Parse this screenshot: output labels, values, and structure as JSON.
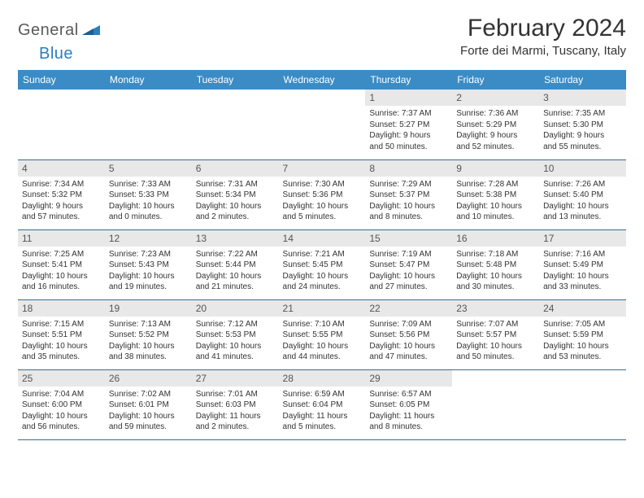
{
  "logo": {
    "text1": "General",
    "text2": "Blue"
  },
  "title": "February 2024",
  "location": "Forte dei Marmi, Tuscany, Italy",
  "colors": {
    "header_bg": "#3b8bc4",
    "header_text": "#ffffff",
    "daynum_bg": "#e8e8e8",
    "row_border": "#3b6b8f",
    "logo_gray": "#5a5a5a",
    "logo_blue": "#2a7fbf"
  },
  "weekdays": [
    "Sunday",
    "Monday",
    "Tuesday",
    "Wednesday",
    "Thursday",
    "Friday",
    "Saturday"
  ],
  "weeks": [
    [
      null,
      null,
      null,
      null,
      {
        "n": "1",
        "sr": "Sunrise: 7:37 AM",
        "ss": "Sunset: 5:27 PM",
        "dl1": "Daylight: 9 hours",
        "dl2": "and 50 minutes."
      },
      {
        "n": "2",
        "sr": "Sunrise: 7:36 AM",
        "ss": "Sunset: 5:29 PM",
        "dl1": "Daylight: 9 hours",
        "dl2": "and 52 minutes."
      },
      {
        "n": "3",
        "sr": "Sunrise: 7:35 AM",
        "ss": "Sunset: 5:30 PM",
        "dl1": "Daylight: 9 hours",
        "dl2": "and 55 minutes."
      }
    ],
    [
      {
        "n": "4",
        "sr": "Sunrise: 7:34 AM",
        "ss": "Sunset: 5:32 PM",
        "dl1": "Daylight: 9 hours",
        "dl2": "and 57 minutes."
      },
      {
        "n": "5",
        "sr": "Sunrise: 7:33 AM",
        "ss": "Sunset: 5:33 PM",
        "dl1": "Daylight: 10 hours",
        "dl2": "and 0 minutes."
      },
      {
        "n": "6",
        "sr": "Sunrise: 7:31 AM",
        "ss": "Sunset: 5:34 PM",
        "dl1": "Daylight: 10 hours",
        "dl2": "and 2 minutes."
      },
      {
        "n": "7",
        "sr": "Sunrise: 7:30 AM",
        "ss": "Sunset: 5:36 PM",
        "dl1": "Daylight: 10 hours",
        "dl2": "and 5 minutes."
      },
      {
        "n": "8",
        "sr": "Sunrise: 7:29 AM",
        "ss": "Sunset: 5:37 PM",
        "dl1": "Daylight: 10 hours",
        "dl2": "and 8 minutes."
      },
      {
        "n": "9",
        "sr": "Sunrise: 7:28 AM",
        "ss": "Sunset: 5:38 PM",
        "dl1": "Daylight: 10 hours",
        "dl2": "and 10 minutes."
      },
      {
        "n": "10",
        "sr": "Sunrise: 7:26 AM",
        "ss": "Sunset: 5:40 PM",
        "dl1": "Daylight: 10 hours",
        "dl2": "and 13 minutes."
      }
    ],
    [
      {
        "n": "11",
        "sr": "Sunrise: 7:25 AM",
        "ss": "Sunset: 5:41 PM",
        "dl1": "Daylight: 10 hours",
        "dl2": "and 16 minutes."
      },
      {
        "n": "12",
        "sr": "Sunrise: 7:23 AM",
        "ss": "Sunset: 5:43 PM",
        "dl1": "Daylight: 10 hours",
        "dl2": "and 19 minutes."
      },
      {
        "n": "13",
        "sr": "Sunrise: 7:22 AM",
        "ss": "Sunset: 5:44 PM",
        "dl1": "Daylight: 10 hours",
        "dl2": "and 21 minutes."
      },
      {
        "n": "14",
        "sr": "Sunrise: 7:21 AM",
        "ss": "Sunset: 5:45 PM",
        "dl1": "Daylight: 10 hours",
        "dl2": "and 24 minutes."
      },
      {
        "n": "15",
        "sr": "Sunrise: 7:19 AM",
        "ss": "Sunset: 5:47 PM",
        "dl1": "Daylight: 10 hours",
        "dl2": "and 27 minutes."
      },
      {
        "n": "16",
        "sr": "Sunrise: 7:18 AM",
        "ss": "Sunset: 5:48 PM",
        "dl1": "Daylight: 10 hours",
        "dl2": "and 30 minutes."
      },
      {
        "n": "17",
        "sr": "Sunrise: 7:16 AM",
        "ss": "Sunset: 5:49 PM",
        "dl1": "Daylight: 10 hours",
        "dl2": "and 33 minutes."
      }
    ],
    [
      {
        "n": "18",
        "sr": "Sunrise: 7:15 AM",
        "ss": "Sunset: 5:51 PM",
        "dl1": "Daylight: 10 hours",
        "dl2": "and 35 minutes."
      },
      {
        "n": "19",
        "sr": "Sunrise: 7:13 AM",
        "ss": "Sunset: 5:52 PM",
        "dl1": "Daylight: 10 hours",
        "dl2": "and 38 minutes."
      },
      {
        "n": "20",
        "sr": "Sunrise: 7:12 AM",
        "ss": "Sunset: 5:53 PM",
        "dl1": "Daylight: 10 hours",
        "dl2": "and 41 minutes."
      },
      {
        "n": "21",
        "sr": "Sunrise: 7:10 AM",
        "ss": "Sunset: 5:55 PM",
        "dl1": "Daylight: 10 hours",
        "dl2": "and 44 minutes."
      },
      {
        "n": "22",
        "sr": "Sunrise: 7:09 AM",
        "ss": "Sunset: 5:56 PM",
        "dl1": "Daylight: 10 hours",
        "dl2": "and 47 minutes."
      },
      {
        "n": "23",
        "sr": "Sunrise: 7:07 AM",
        "ss": "Sunset: 5:57 PM",
        "dl1": "Daylight: 10 hours",
        "dl2": "and 50 minutes."
      },
      {
        "n": "24",
        "sr": "Sunrise: 7:05 AM",
        "ss": "Sunset: 5:59 PM",
        "dl1": "Daylight: 10 hours",
        "dl2": "and 53 minutes."
      }
    ],
    [
      {
        "n": "25",
        "sr": "Sunrise: 7:04 AM",
        "ss": "Sunset: 6:00 PM",
        "dl1": "Daylight: 10 hours",
        "dl2": "and 56 minutes."
      },
      {
        "n": "26",
        "sr": "Sunrise: 7:02 AM",
        "ss": "Sunset: 6:01 PM",
        "dl1": "Daylight: 10 hours",
        "dl2": "and 59 minutes."
      },
      {
        "n": "27",
        "sr": "Sunrise: 7:01 AM",
        "ss": "Sunset: 6:03 PM",
        "dl1": "Daylight: 11 hours",
        "dl2": "and 2 minutes."
      },
      {
        "n": "28",
        "sr": "Sunrise: 6:59 AM",
        "ss": "Sunset: 6:04 PM",
        "dl1": "Daylight: 11 hours",
        "dl2": "and 5 minutes."
      },
      {
        "n": "29",
        "sr": "Sunrise: 6:57 AM",
        "ss": "Sunset: 6:05 PM",
        "dl1": "Daylight: 11 hours",
        "dl2": "and 8 minutes."
      },
      null,
      null
    ]
  ]
}
